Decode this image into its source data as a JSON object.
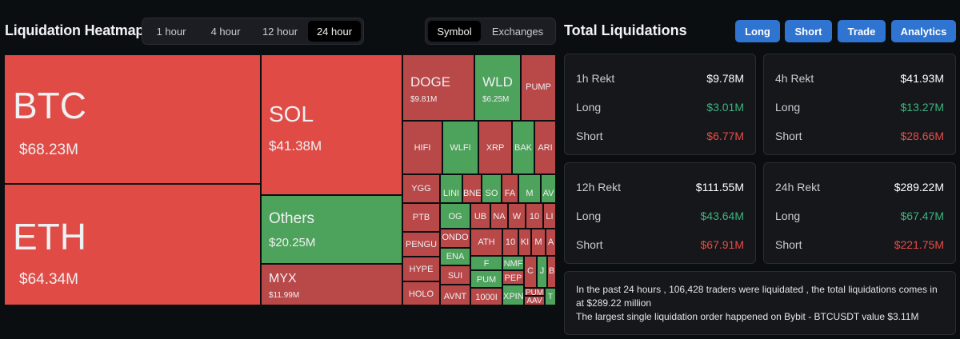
{
  "heatmap": {
    "title": "Liquidation Heatmap",
    "time_options": [
      "1 hour",
      "4 hour",
      "12 hour",
      "24 hour"
    ],
    "time_selected": "24 hour",
    "view_options": [
      "Symbol",
      "Exchanges"
    ],
    "view_selected": "Symbol",
    "colors": {
      "long_liq": "#e04b46",
      "long_liq_dark": "#b94849",
      "short_liq": "#4ea35c"
    },
    "tiles": [
      {
        "symbol": "BTC",
        "value": "$68.23M",
        "color": "red"
      },
      {
        "symbol": "ETH",
        "value": "$64.34M",
        "color": "red"
      },
      {
        "symbol": "SOL",
        "value": "$41.38M",
        "color": "red"
      },
      {
        "symbol": "Others",
        "value": "$20.25M",
        "color": "green"
      },
      {
        "symbol": "MYX",
        "value": "$11.99M",
        "color": "dred"
      },
      {
        "symbol": "DOGE",
        "value": "$9.81M",
        "color": "dred"
      },
      {
        "symbol": "WLD",
        "value": "$6.25M",
        "color": "green"
      },
      {
        "symbol": "PUMP",
        "value": "",
        "color": "dred"
      },
      {
        "symbol": "HIFI",
        "value": "",
        "color": "dred"
      },
      {
        "symbol": "WLFI",
        "value": "",
        "color": "green"
      },
      {
        "symbol": "XRP",
        "value": "",
        "color": "dred"
      },
      {
        "symbol": "BAK",
        "value": "",
        "color": "green"
      },
      {
        "symbol": "ARI",
        "value": "",
        "color": "dred"
      },
      {
        "symbol": "YGG",
        "value": "",
        "color": "dred"
      },
      {
        "symbol": "LINI",
        "value": "",
        "color": "green"
      },
      {
        "symbol": "BNE",
        "value": "",
        "color": "dred"
      },
      {
        "symbol": "SO",
        "value": "",
        "color": "green"
      },
      {
        "symbol": "FA",
        "value": "",
        "color": "dred"
      },
      {
        "symbol": "M",
        "value": "",
        "color": "green"
      },
      {
        "symbol": "AV",
        "value": "",
        "color": "green"
      },
      {
        "symbol": "PTB",
        "value": "",
        "color": "dred"
      },
      {
        "symbol": "OG",
        "value": "",
        "color": "green"
      },
      {
        "symbol": "PENGU",
        "value": "",
        "color": "dred"
      },
      {
        "symbol": "UB",
        "value": "",
        "color": "dred"
      },
      {
        "symbol": "NA",
        "value": "",
        "color": "dred"
      },
      {
        "symbol": "W",
        "value": "",
        "color": "dred"
      },
      {
        "symbol": "10",
        "value": "",
        "color": "dred"
      },
      {
        "symbol": "LI",
        "value": "",
        "color": "dred"
      },
      {
        "symbol": "ONDO",
        "value": "",
        "color": "dred"
      },
      {
        "symbol": "HYPE",
        "value": "",
        "color": "dred"
      },
      {
        "symbol": "ENA",
        "value": "",
        "color": "green"
      },
      {
        "symbol": "ATH",
        "value": "",
        "color": "dred"
      },
      {
        "symbol": "10",
        "value": "",
        "color": "dred"
      },
      {
        "symbol": "KI",
        "value": "",
        "color": "dred"
      },
      {
        "symbol": "M",
        "value": "",
        "color": "dred"
      },
      {
        "symbol": "A",
        "value": "",
        "color": "dred"
      },
      {
        "symbol": "F",
        "value": "",
        "color": "green"
      },
      {
        "symbol": "HOLO",
        "value": "",
        "color": "dred"
      },
      {
        "symbol": "SUI",
        "value": "",
        "color": "dred"
      },
      {
        "symbol": "PUM",
        "value": "",
        "color": "green"
      },
      {
        "symbol": "NMF",
        "value": "",
        "color": "green"
      },
      {
        "symbol": "C",
        "value": "",
        "color": "dred"
      },
      {
        "symbol": "J",
        "value": "",
        "color": "green"
      },
      {
        "symbol": "B",
        "value": "",
        "color": "dred"
      },
      {
        "symbol": "AVNT",
        "value": "",
        "color": "dred"
      },
      {
        "symbol": "1000I",
        "value": "",
        "color": "dred"
      },
      {
        "symbol": "PEP",
        "value": "",
        "color": "dred"
      },
      {
        "symbol": "XPIN",
        "value": "",
        "color": "green"
      },
      {
        "symbol": "PUM",
        "value": "",
        "color": "dred"
      },
      {
        "symbol": "AAV",
        "value": "",
        "color": "dred"
      },
      {
        "symbol": "T",
        "value": "",
        "color": "green"
      }
    ]
  },
  "totals": {
    "title": "Total Liquidations",
    "buttons": [
      "Long",
      "Short",
      "Trade",
      "Analytics"
    ],
    "cards": [
      {
        "label": "1h Rekt",
        "total": "$9.78M",
        "long_label": "Long",
        "long": "$3.01M",
        "short_label": "Short",
        "short": "$6.77M"
      },
      {
        "label": "4h Rekt",
        "total": "$41.93M",
        "long_label": "Long",
        "long": "$13.27M",
        "short_label": "Short",
        "short": "$28.66M"
      },
      {
        "label": "12h Rekt",
        "total": "$111.55M",
        "long_label": "Long",
        "long": "$43.64M",
        "short_label": "Short",
        "short": "$67.91M"
      },
      {
        "label": "24h Rekt",
        "total": "$289.22M",
        "long_label": "Long",
        "long": "$67.47M",
        "short_label": "Short",
        "short": "$221.75M"
      }
    ],
    "colors": {
      "long": "#3fb27f",
      "short": "#ea4b45",
      "button": "#2f74d0"
    },
    "summary_line1": "In the past 24 hours , 106,428 traders were liquidated , the total liquidations comes in at $289.22 million",
    "summary_line2": "The largest single liquidation order happened on Bybit - BTCUSDT value $3.11M"
  }
}
